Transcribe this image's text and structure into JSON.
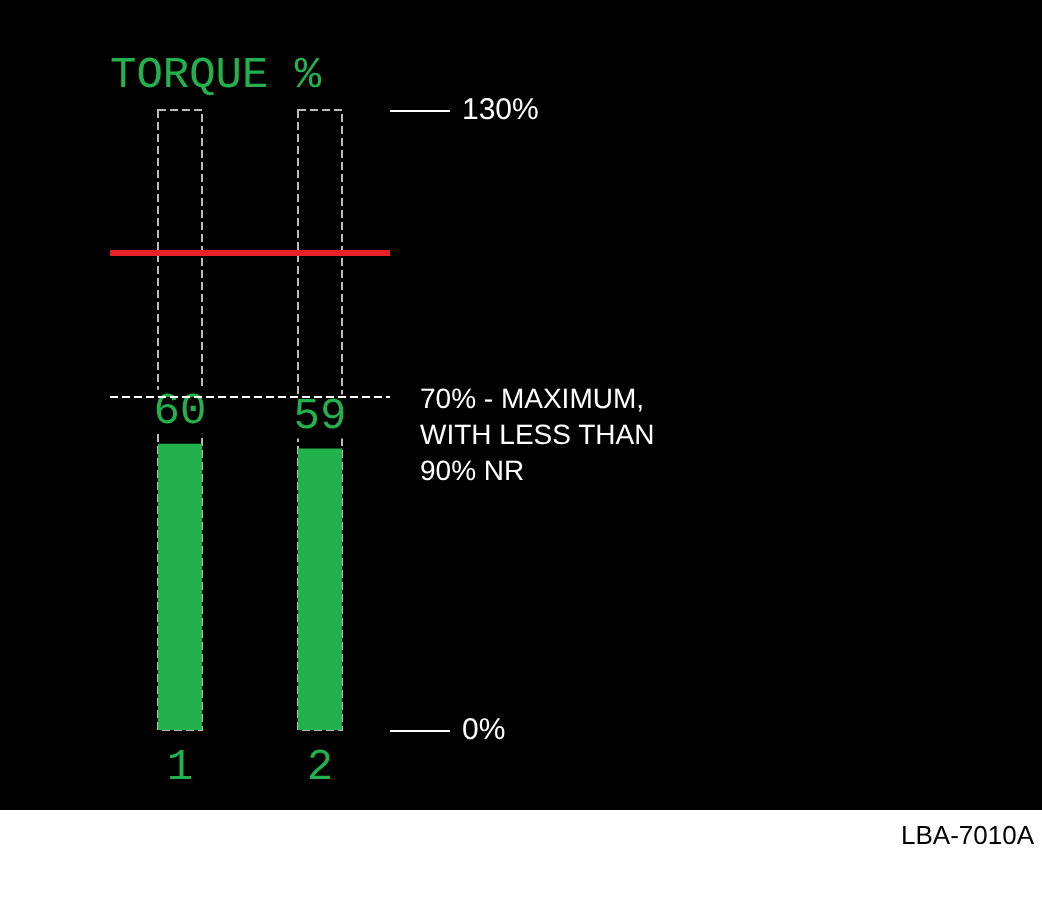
{
  "chart_data": {
    "type": "bar",
    "title": "TORQUE %",
    "categories": [
      "1",
      "2"
    ],
    "values": [
      60,
      59
    ],
    "color": "#22b14c",
    "data_labels": true,
    "ylim": [
      0,
      130
    ],
    "yticks": [
      {
        "value": 0,
        "label": "0%"
      },
      {
        "value": 130,
        "label": "130%"
      }
    ],
    "grid": false,
    "ref_lines": [
      {
        "axis": "y",
        "value": 70,
        "label": "70% - MAXIMUM, WITH LESS THAN 90% NR",
        "color": "#ffffff",
        "line_style": "dashed"
      },
      {
        "axis": "y",
        "value": 100,
        "color": "#e8202a",
        "line_style": "solid"
      }
    ],
    "annotations": [
      "LBA-7010A"
    ]
  }
}
